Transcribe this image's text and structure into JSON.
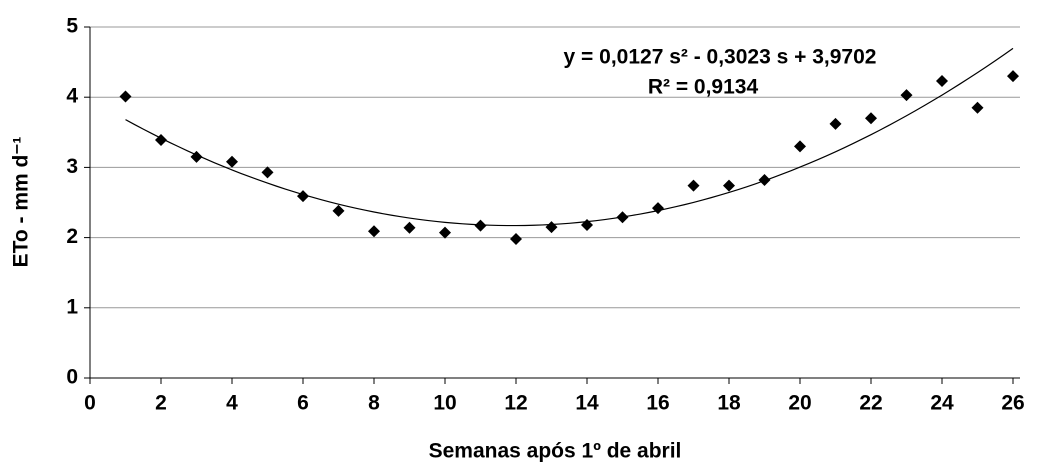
{
  "chart_data": {
    "type": "scatter",
    "x_label": "Semanas após 1º de abril",
    "y_label": "ETo - mm d⁻¹",
    "x": [
      1,
      2,
      3,
      4,
      5,
      6,
      7,
      8,
      9,
      10,
      11,
      12,
      13,
      14,
      15,
      16,
      17,
      18,
      19,
      20,
      21,
      22,
      23,
      24,
      25,
      26
    ],
    "series": [
      {
        "name": "ETo",
        "color": "#000000",
        "values": [
          4.01,
          3.39,
          3.15,
          3.08,
          2.93,
          2.59,
          2.38,
          2.09,
          2.14,
          2.07,
          2.17,
          1.98,
          2.15,
          2.18,
          2.29,
          2.42,
          2.74,
          2.74,
          2.82,
          3.3,
          3.62,
          3.7,
          4.03,
          4.23,
          3.85,
          4.3
        ]
      }
    ],
    "trendline": {
      "coefficients": [
        0.0127,
        -0.3023,
        3.9702
      ],
      "equation": "y = 0,0127 s² - 0,3023 s + 3,9702",
      "r2_label": "R² = 0,9134",
      "r2": 0.9134
    },
    "xlim": [
      0,
      26
    ],
    "ylim": [
      0,
      5
    ],
    "xticks": [
      0,
      2,
      4,
      6,
      8,
      10,
      12,
      14,
      16,
      18,
      20,
      22,
      24,
      26
    ],
    "yticks": [
      0,
      1,
      2,
      3,
      4,
      5
    ],
    "grid": true
  }
}
